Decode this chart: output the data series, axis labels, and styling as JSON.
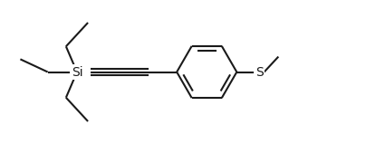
{
  "bg_color": "#ffffff",
  "line_color": "#1a1a1a",
  "line_width": 1.5,
  "si_label": "Si",
  "s_label": "S",
  "si_fontsize": 10,
  "s_fontsize": 10,
  "figsize": [
    4.04,
    1.59
  ],
  "dpi": 100
}
